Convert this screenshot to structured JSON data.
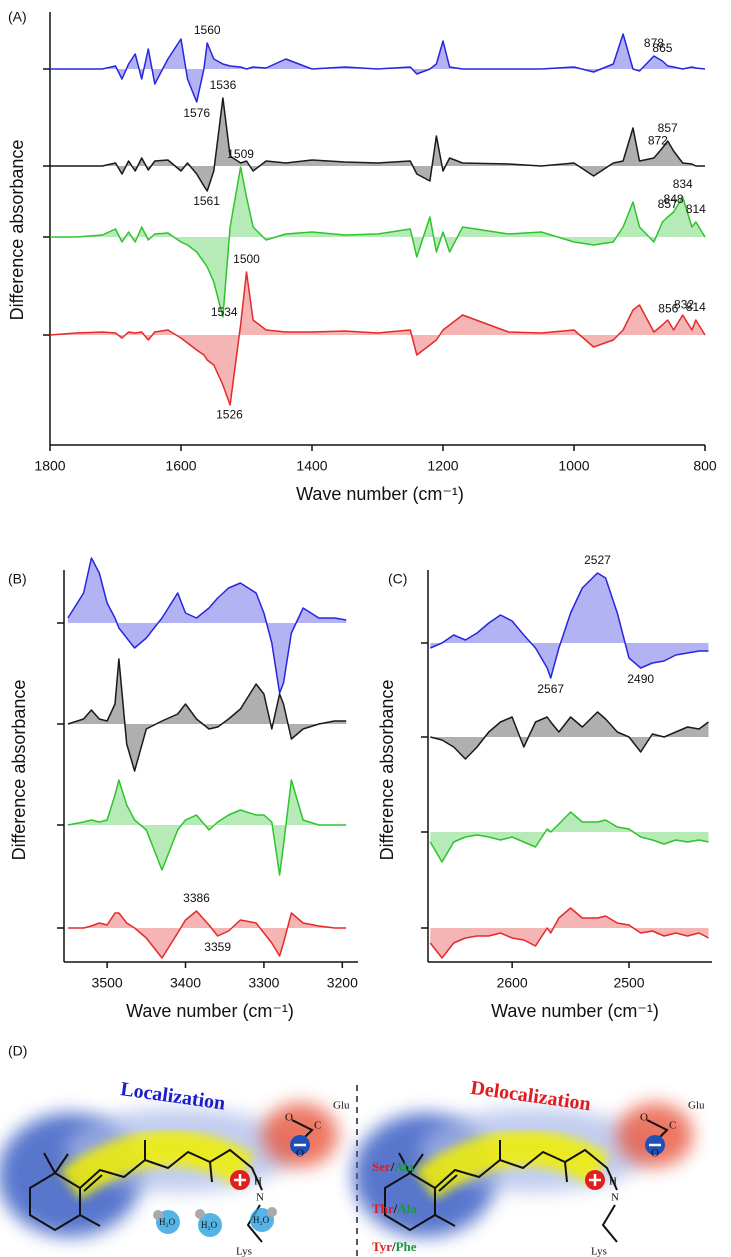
{
  "chart_data": [
    {
      "type": "line",
      "label": "(A)",
      "y_label": "Difference absorbance",
      "x_label": "Wave number (cm⁻¹)",
      "xlim": [
        1800,
        800
      ],
      "xticks": [
        1800,
        1600,
        1400,
        1200,
        1000,
        800
      ],
      "fill": true,
      "x": [
        1800,
        1760,
        1720,
        1700,
        1690,
        1680,
        1670,
        1660,
        1650,
        1640,
        1620,
        1600,
        1590,
        1576,
        1565,
        1560,
        1550,
        1536,
        1525,
        1509,
        1500,
        1490,
        1470,
        1440,
        1400,
        1350,
        1300,
        1250,
        1240,
        1220,
        1210,
        1200,
        1190,
        1170,
        1100,
        1050,
        1000,
        970,
        940,
        925,
        910,
        900,
        878,
        865,
        857,
        848,
        834,
        820,
        814,
        800
      ],
      "series": [
        {
          "color": "#2626e0",
          "peaks": [
            1560,
            1576,
            878,
            865
          ],
          "values": [
            0,
            0,
            0,
            0.3,
            -1,
            0.5,
            1.5,
            -1,
            2,
            -1.5,
            1,
            3,
            -1,
            -3.3,
            0,
            2.6,
            1,
            0.5,
            0.3,
            0.2,
            0,
            0.2,
            0.1,
            1,
            0,
            0.2,
            0,
            0.2,
            -0.5,
            0,
            0.5,
            2.8,
            0.2,
            0,
            0,
            0,
            0.2,
            -0.3,
            0.5,
            3.5,
            0,
            -0.2,
            1.3,
            0.8,
            0.3,
            0.2,
            0,
            0.2,
            0.1,
            0
          ]
        },
        {
          "color": "#1a1a1a",
          "peaks": [
            1536,
            1561,
            872,
            857
          ],
          "values": [
            0,
            0,
            0,
            0.3,
            -0.8,
            0.5,
            -0.5,
            0.8,
            -0.4,
            0.5,
            0.6,
            -0.5,
            0.3,
            -0.8,
            -2,
            -2.5,
            -0.5,
            6.8,
            1,
            0.3,
            0.5,
            -0.5,
            0.5,
            0.3,
            0.6,
            0.4,
            0.3,
            0.5,
            -0.8,
            -1.5,
            3,
            -0.5,
            0.8,
            0.3,
            0.2,
            0,
            0.3,
            -1,
            0.3,
            0.5,
            3.8,
            0.5,
            0.8,
            1.8,
            2.5,
            1.5,
            0.3,
            0.2,
            0,
            0
          ]
        },
        {
          "color": "#2ec42e",
          "peaks": [
            1509,
            1534,
            857,
            848,
            834,
            814
          ],
          "values": [
            0,
            0,
            0.2,
            0.8,
            -0.5,
            0.5,
            -0.5,
            1,
            -0.3,
            0.3,
            0.4,
            -0.5,
            -0.8,
            -1.5,
            -2.5,
            -3,
            -4.5,
            -8,
            1,
            7,
            4,
            1,
            -0.3,
            0.3,
            0.5,
            0.2,
            0.3,
            0.8,
            -2,
            2,
            -1.5,
            0.5,
            -1.5,
            1,
            0.3,
            0.5,
            -0.5,
            -0.8,
            -0.5,
            1,
            3.5,
            1,
            -0.5,
            1.5,
            2,
            2.5,
            4,
            1,
            1.5,
            0
          ]
        },
        {
          "color": "#e42a2a",
          "peaks": [
            1500,
            1526,
            856,
            832,
            814
          ],
          "values": [
            0,
            0.2,
            0.3,
            0.2,
            -0.3,
            0.3,
            0.2,
            0.3,
            -0.5,
            0.3,
            0.5,
            -0.3,
            -0.8,
            -1.5,
            -2,
            -2.5,
            -3,
            -5,
            -7,
            1,
            6.3,
            1.5,
            0.5,
            0.3,
            0.3,
            0.4,
            0.2,
            0.5,
            -2,
            -1,
            -0.5,
            0.5,
            1,
            2,
            0.3,
            0.2,
            0.5,
            -1.2,
            -0.5,
            0.5,
            2.5,
            3,
            0.3,
            1,
            1.5,
            0.5,
            2,
            0.5,
            1.5,
            0
          ]
        }
      ]
    },
    {
      "type": "line",
      "label": "(B)",
      "y_label": "Difference absorbance",
      "x_label": "Wave number (cm⁻¹)",
      "xlim": [
        3555,
        3180
      ],
      "xticks": [
        3500,
        3400,
        3300,
        3200
      ],
      "fill": true,
      "x": [
        3550,
        3530,
        3520,
        3510,
        3500,
        3490,
        3485,
        3475,
        3465,
        3450,
        3430,
        3410,
        3400,
        3386,
        3370,
        3359,
        3345,
        3330,
        3310,
        3300,
        3290,
        3280,
        3275,
        3265,
        3250,
        3230,
        3210,
        3195
      ],
      "series": [
        {
          "color": "#2626e0",
          "values": [
            0.5,
            3,
            6.5,
            5,
            2,
            0.5,
            -0.5,
            -1.5,
            -2.5,
            -1.5,
            0.5,
            3,
            1,
            0.5,
            1.5,
            2.5,
            3.5,
            4,
            3,
            1,
            -2,
            -7,
            -6,
            -1,
            1.5,
            0.5,
            0.5,
            0.3
          ]
        },
        {
          "color": "#1a1a1a",
          "values": [
            0,
            0.5,
            1.4,
            0.5,
            0.3,
            2,
            6.5,
            -2,
            -4.7,
            -0.5,
            0.3,
            1,
            2,
            0.5,
            -0.5,
            -0.3,
            0.5,
            1.5,
            4,
            3,
            -0.5,
            3,
            2,
            -1.5,
            -0.5,
            0,
            0.3,
            0.3
          ]
        },
        {
          "color": "#2ec42e",
          "values": [
            0,
            0.3,
            0.5,
            0.3,
            0.5,
            3,
            4.5,
            2,
            0.5,
            -0.5,
            -4.5,
            -0.5,
            0.5,
            1,
            -0.5,
            0.3,
            1,
            1.5,
            1,
            1,
            0.3,
            -5,
            -2,
            4.5,
            0.5,
            0,
            0,
            0
          ]
        },
        {
          "color": "#e42a2a",
          "peaks": [
            3386,
            3359
          ],
          "values": [
            0,
            0,
            0.2,
            0.5,
            0.3,
            1.5,
            1.5,
            0.5,
            0,
            -1,
            -3,
            -0.5,
            0.8,
            1.7,
            0.3,
            -0.8,
            -0.3,
            0.8,
            0.5,
            -0.5,
            -1.5,
            -2.8,
            -1.5,
            1.5,
            0.5,
            0.2,
            0,
            0
          ]
        }
      ]
    },
    {
      "type": "line",
      "label": "(C)",
      "y_label": "Difference absorbance",
      "x_label": "Wave number (cm⁻¹)",
      "xlim": [
        2672,
        2429
      ],
      "xticks": [
        2600,
        2500
      ],
      "fill": true,
      "x": [
        2670,
        2660,
        2650,
        2640,
        2630,
        2620,
        2610,
        2600,
        2590,
        2580,
        2570,
        2567,
        2560,
        2550,
        2540,
        2527,
        2520,
        2510,
        2500,
        2490,
        2480,
        2470,
        2460,
        2450,
        2440,
        2432
      ],
      "series": [
        {
          "color": "#2626e0",
          "peaks": [
            2527,
            2567,
            2490
          ],
          "values": [
            -0.5,
            0,
            0.8,
            0.3,
            1,
            2,
            2.8,
            2.2,
            0.8,
            -0.5,
            -2.5,
            -3.5,
            -0.5,
            3,
            5.5,
            7,
            6.5,
            3,
            -1.5,
            -2.5,
            -2,
            -1.8,
            -1.2,
            -1,
            -0.8,
            -0.8
          ]
        },
        {
          "color": "#1a1a1a",
          "values": [
            0,
            -0.3,
            -1,
            -2.2,
            -1,
            0.5,
            1.5,
            2,
            -1,
            1.5,
            2,
            1.5,
            0.5,
            2,
            1,
            2.5,
            1.8,
            0.5,
            0,
            -1.5,
            0.3,
            0,
            0.5,
            1,
            0.8,
            1.5
          ]
        },
        {
          "color": "#2ec42e",
          "values": [
            -1,
            -3,
            -1,
            -0.5,
            -0.3,
            -0.5,
            -0.8,
            -0.5,
            -1,
            -1.5,
            0.3,
            0,
            0.8,
            2,
            1,
            1,
            1.2,
            0.5,
            0.3,
            -0.5,
            -0.8,
            -1.2,
            -0.8,
            -1,
            -0.8,
            -1
          ]
        },
        {
          "color": "#e42a2a",
          "values": [
            -1.5,
            -3,
            -1.5,
            -1,
            -0.8,
            -0.8,
            -0.5,
            -1,
            -1.2,
            -1.8,
            0,
            -0.5,
            1,
            2,
            1,
            1,
            1.2,
            0.5,
            0.3,
            -0.5,
            -0.3,
            -0.8,
            -0.5,
            -0.8,
            -0.5,
            -1
          ]
        }
      ]
    }
  ],
  "panel_d": {
    "label": "(D)",
    "left": {
      "title": "Localization",
      "acid": "Glu",
      "base": "Lys",
      "o1": "O",
      "o2": "O",
      "c": "C",
      "n": "N",
      "h": "H",
      "waters": [
        "H₂O",
        "H₂O",
        "H₂O"
      ]
    },
    "right": {
      "title": "Delocalization",
      "acid": "Glu",
      "base": "Lys",
      "o1": "O",
      "o2": "O",
      "c": "C",
      "n": "N",
      "h": "H",
      "mutations": [
        [
          "Ser",
          "/",
          "Ala"
        ],
        [
          "Thr",
          "/",
          "Ala"
        ],
        [
          "Tyr",
          "/",
          "Phe"
        ]
      ]
    }
  }
}
